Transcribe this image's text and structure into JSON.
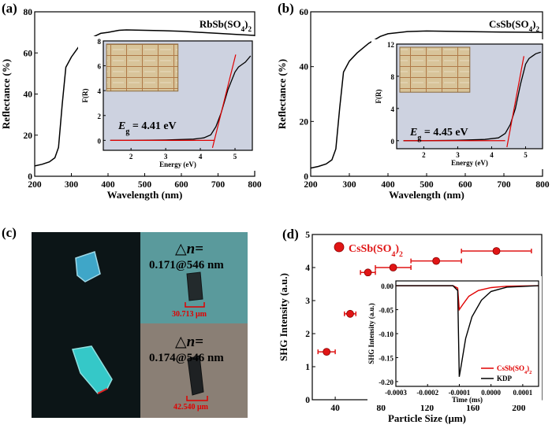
{
  "panels": [
    {
      "label": "(a)"
    },
    {
      "label": "(b)"
    },
    {
      "label": "(c)"
    },
    {
      "label": "(d)"
    }
  ],
  "micrographs": {
    "top": {
      "delta_n": "△n=",
      "value": "0.171@546 nm",
      "scale": "30.713 μm"
    },
    "bottom": {
      "delta_n": "△n=",
      "value": "0.174@546 nm",
      "scale": "42.540 μm"
    }
  },
  "colors": {
    "curve": "#000000",
    "fit": "#e00000",
    "marker": "#e01515",
    "inset_bg": "#cdd2e0",
    "panel_c_top": "#5a9a9c",
    "panel_c_bottom": "#8a7f75"
  },
  "chart_data": [
    {
      "type": "line",
      "panel": "(a)",
      "annotation": "RbSb(SO4)2",
      "xlabel": "Wavelength (nm)",
      "ylabel": "Reflectance (%)",
      "xlim": [
        200,
        800
      ],
      "ylim": [
        0,
        80
      ],
      "xticks": [
        200,
        300,
        400,
        500,
        600,
        700,
        800
      ],
      "yticks": [
        0,
        20,
        40,
        60,
        80
      ],
      "series": [
        {
          "x": [
            200,
            220,
            240,
            255,
            265,
            275,
            285,
            300,
            320,
            350,
            380,
            400,
            430,
            450,
            500,
            550,
            600,
            650,
            700,
            750,
            800
          ],
          "y": [
            5,
            5.8,
            7,
            9,
            14,
            35,
            53,
            58,
            63,
            67,
            69.5,
            70,
            71,
            71.2,
            71,
            70.8,
            70.5,
            70,
            69.5,
            69,
            68.5
          ]
        }
      ],
      "inset": {
        "type": "line",
        "xlabel": "Energy (eV)",
        "ylabel": "F(R)",
        "xlim": [
          1.2,
          5.5
        ],
        "ylim": [
          -0.8,
          8
        ],
        "xticks": [
          2,
          3,
          4,
          5
        ],
        "yticks": [
          0,
          2,
          4,
          6,
          8
        ],
        "label": "E",
        "sub": "g",
        "value": "= 4.41 eV",
        "series": [
          {
            "x": [
              1.4,
              2,
              3,
              3.8,
              4.1,
              4.3,
              4.45,
              4.6,
              4.8,
              5.0,
              5.1,
              5.2,
              5.3,
              5.45
            ],
            "y": [
              0,
              0,
              0.03,
              0.1,
              0.2,
              0.45,
              1.1,
              2.2,
              4.1,
              5.5,
              5.9,
              6.1,
              6.3,
              6.8
            ]
          }
        ],
        "fit_line": {
          "x": [
            4.35,
            5.02
          ],
          "y": [
            -0.6,
            6.9
          ]
        }
      }
    },
    {
      "type": "line",
      "panel": "(b)",
      "annotation": "CsSb(SO4)2",
      "xlabel": "Wavelength (nm)",
      "ylabel": "Reflectance (%)",
      "xlim": [
        200,
        800
      ],
      "ylim": [
        0,
        60
      ],
      "xticks": [
        200,
        300,
        400,
        500,
        600,
        700,
        800
      ],
      "yticks": [
        0,
        20,
        40,
        60
      ],
      "series": [
        {
          "x": [
            200,
            220,
            240,
            255,
            265,
            275,
            285,
            300,
            320,
            350,
            380,
            400,
            450,
            500,
            600,
            700,
            800
          ],
          "y": [
            3,
            3.6,
            4.5,
            6,
            10,
            25,
            38,
            42,
            45,
            48.5,
            51,
            52,
            52.8,
            53,
            52.8,
            52.6,
            52.5
          ]
        }
      ],
      "inset": {
        "type": "line",
        "xlabel": "Energy (eV)",
        "ylabel": "F(R)",
        "xlim": [
          1.2,
          5.5
        ],
        "ylim": [
          -1,
          12
        ],
        "xticks": [
          2,
          3,
          4,
          5
        ],
        "yticks": [
          0,
          4,
          8,
          12
        ],
        "label": "E",
        "sub": "g",
        "value": "= 4.45 eV",
        "series": [
          {
            "x": [
              1.4,
              2,
              3,
              3.8,
              4.2,
              4.4,
              4.55,
              4.7,
              4.85,
              5.0,
              5.1,
              5.2,
              5.3,
              5.45
            ],
            "y": [
              0,
              0,
              0.05,
              0.15,
              0.35,
              0.9,
              2,
              4,
              7,
              9.5,
              10.2,
              10.5,
              10.8,
              11
            ]
          }
        ],
        "fit_line": {
          "x": [
            4.45,
            4.95
          ],
          "y": [
            -0.8,
            10.5
          ]
        }
      }
    },
    {
      "type": "scatter",
      "panel": "(d)",
      "legend": "CsSb(SO4)2",
      "xlabel": "Particle Size (μm)",
      "ylabel": "SHG Intensity (a.u.)",
      "xlim": [
        20,
        220
      ],
      "ylim": [
        0,
        5
      ],
      "xticks": [
        40,
        80,
        120,
        160,
        200
      ],
      "yticks": [
        0,
        1,
        2,
        3,
        4,
        5
      ],
      "series": [
        {
          "name": "CsSb(SO4)2",
          "x": [
            32.5,
            53,
            68.5,
            90.5,
            128,
            180.5
          ],
          "y": [
            1.45,
            2.6,
            3.85,
            4.0,
            4.2,
            4.5
          ],
          "xerr": [
            7.5,
            5,
            6.5,
            15.5,
            22,
            30.5
          ]
        }
      ],
      "inset": {
        "type": "line",
        "xlabel": "Time (ms)",
        "ylabel": "SHG Intensity (a.u.)",
        "xlim": [
          -0.0003,
          0.00015
        ],
        "ylim": [
          -0.21,
          0.01
        ],
        "xticks": [
          -0.0003,
          -0.0002,
          -0.0001,
          0.0,
          0.0001
        ],
        "xticklabels": [
          "-0.0003",
          "-0.0002",
          "-0.0001",
          "0.0000",
          "0.0001"
        ],
        "yticks": [
          0.0,
          -0.05,
          -0.1,
          -0.15,
          -0.2
        ],
        "yticklabels": [
          "0.00",
          "-0.05",
          "-0.10",
          "-0.15",
          "-0.20"
        ],
        "series": [
          {
            "name": "CsSb(SO4)2",
            "x": [
              -0.0003,
              -0.00012,
              -0.000105,
              -0.0001,
              -9e-05,
              -7e-05,
              -4e-05,
              0,
              5e-05,
              0.00015
            ],
            "y": [
              0,
              0,
              -0.005,
              -0.05,
              -0.04,
              -0.022,
              -0.01,
              -0.004,
              -0.001,
              0
            ]
          },
          {
            "name": "KDP",
            "x": [
              -0.0003,
              -0.00012,
              -0.000105,
              -0.0001,
              -9.5e-05,
              -8e-05,
              -6e-05,
              -3e-05,
              0,
              5e-05,
              0.00015
            ],
            "y": [
              0,
              0,
              -0.01,
              -0.19,
              -0.17,
              -0.11,
              -0.065,
              -0.03,
              -0.012,
              -0.003,
              0
            ]
          }
        ]
      }
    }
  ]
}
